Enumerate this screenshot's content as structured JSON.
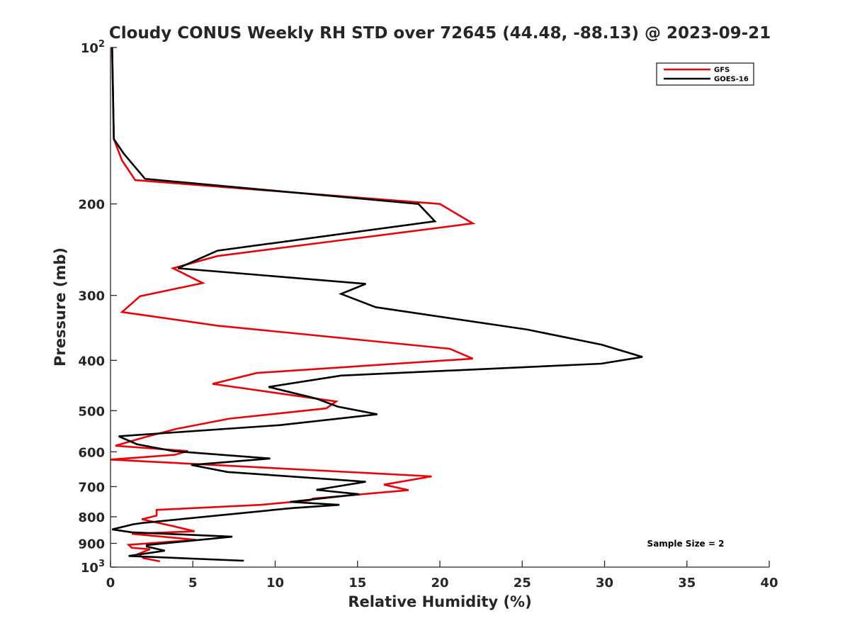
{
  "chart_data": {
    "type": "line",
    "title": "Cloudy CONUS Weekly RH STD over 72645 (44.48, -88.13) @ 2023-09-21",
    "xlabel": "Relative Humidity (%)",
    "ylabel": "Pressure (mb)",
    "xlim": [
      0,
      40
    ],
    "ylim": [
      100,
      1000
    ],
    "yscale": "log",
    "y_reversed": true,
    "x_ticks": [
      0,
      5,
      10,
      15,
      20,
      25,
      30,
      35,
      40
    ],
    "y_ticks": [
      {
        "value": 100,
        "base": "10",
        "exp": "2"
      },
      {
        "value": 200,
        "label": "200"
      },
      {
        "value": 300,
        "label": "300"
      },
      {
        "value": 400,
        "label": "400"
      },
      {
        "value": 500,
        "label": "500"
      },
      {
        "value": 600,
        "label": "600"
      },
      {
        "value": 700,
        "label": "700"
      },
      {
        "value": 800,
        "label": "800"
      },
      {
        "value": 900,
        "label": "900"
      },
      {
        "value": 1000,
        "base": "10",
        "exp": "3"
      }
    ],
    "grid": false,
    "legend": "top-right",
    "annotation": "Sample Size = 2",
    "series": [
      {
        "name": "GFS",
        "color": "#e8040a",
        "points": [
          [
            0.1,
            100
          ],
          [
            0.2,
            150
          ],
          [
            0.7,
            165
          ],
          [
            1.5,
            180
          ],
          [
            20.0,
            200
          ],
          [
            22.0,
            218
          ],
          [
            6.5,
            252
          ],
          [
            3.8,
            266
          ],
          [
            5.6,
            284
          ],
          [
            1.8,
            301
          ],
          [
            0.7,
            323
          ],
          [
            6.5,
            343
          ],
          [
            20.6,
            380
          ],
          [
            22.0,
            397
          ],
          [
            8.9,
            423
          ],
          [
            6.2,
            444
          ],
          [
            13.7,
            480
          ],
          [
            13.1,
            495
          ],
          [
            7.2,
            518
          ],
          [
            4.0,
            542
          ],
          [
            2.1,
            562
          ],
          [
            0.3,
            584
          ],
          [
            4.7,
            598
          ],
          [
            3.9,
            608
          ],
          [
            0.0,
            621
          ],
          [
            19.5,
            669
          ],
          [
            16.6,
            694
          ],
          [
            18.1,
            711
          ],
          [
            12.3,
            738
          ],
          [
            12.1,
            744
          ],
          [
            9.1,
            759
          ],
          [
            2.8,
            776
          ],
          [
            2.8,
            796
          ],
          [
            1.9,
            809
          ],
          [
            3.8,
            834
          ],
          [
            5.1,
            853
          ],
          [
            1.3,
            863
          ],
          [
            5.2,
            886
          ],
          [
            1.1,
            906
          ],
          [
            1.3,
            918
          ],
          [
            2.4,
            924
          ],
          [
            1.7,
            943
          ],
          [
            2.0,
            961
          ],
          [
            3.0,
            975
          ]
        ]
      },
      {
        "name": "GOES-16",
        "color": "#000000",
        "points": [
          [
            0.1,
            100
          ],
          [
            0.2,
            150
          ],
          [
            0.8,
            160
          ],
          [
            2.1,
            179
          ],
          [
            18.7,
            200
          ],
          [
            19.7,
            216
          ],
          [
            6.5,
            246
          ],
          [
            4.1,
            266
          ],
          [
            15.5,
            285
          ],
          [
            14.0,
            298
          ],
          [
            16.1,
            316
          ],
          [
            25.3,
            349
          ],
          [
            29.8,
            373
          ],
          [
            32.3,
            394
          ],
          [
            29.8,
            406
          ],
          [
            14.0,
            428
          ],
          [
            9.6,
            450
          ],
          [
            12.5,
            474
          ],
          [
            13.8,
            491
          ],
          [
            16.2,
            508
          ],
          [
            10.3,
            533
          ],
          [
            0.5,
            560
          ],
          [
            1.6,
            580
          ],
          [
            3.8,
            598
          ],
          [
            9.7,
            618
          ],
          [
            4.9,
            636
          ],
          [
            7.1,
            656
          ],
          [
            15.5,
            685
          ],
          [
            12.5,
            710
          ],
          [
            15.1,
            724
          ],
          [
            10.9,
            749
          ],
          [
            13.9,
            759
          ],
          [
            11.0,
            770
          ],
          [
            2.0,
            822
          ],
          [
            1.4,
            827
          ],
          [
            0.1,
            846
          ],
          [
            1.3,
            857
          ],
          [
            7.4,
            874
          ],
          [
            2.2,
            907
          ],
          [
            2.2,
            913
          ],
          [
            3.3,
            930
          ],
          [
            1.1,
            952
          ],
          [
            8.1,
            972
          ]
        ]
      }
    ]
  }
}
